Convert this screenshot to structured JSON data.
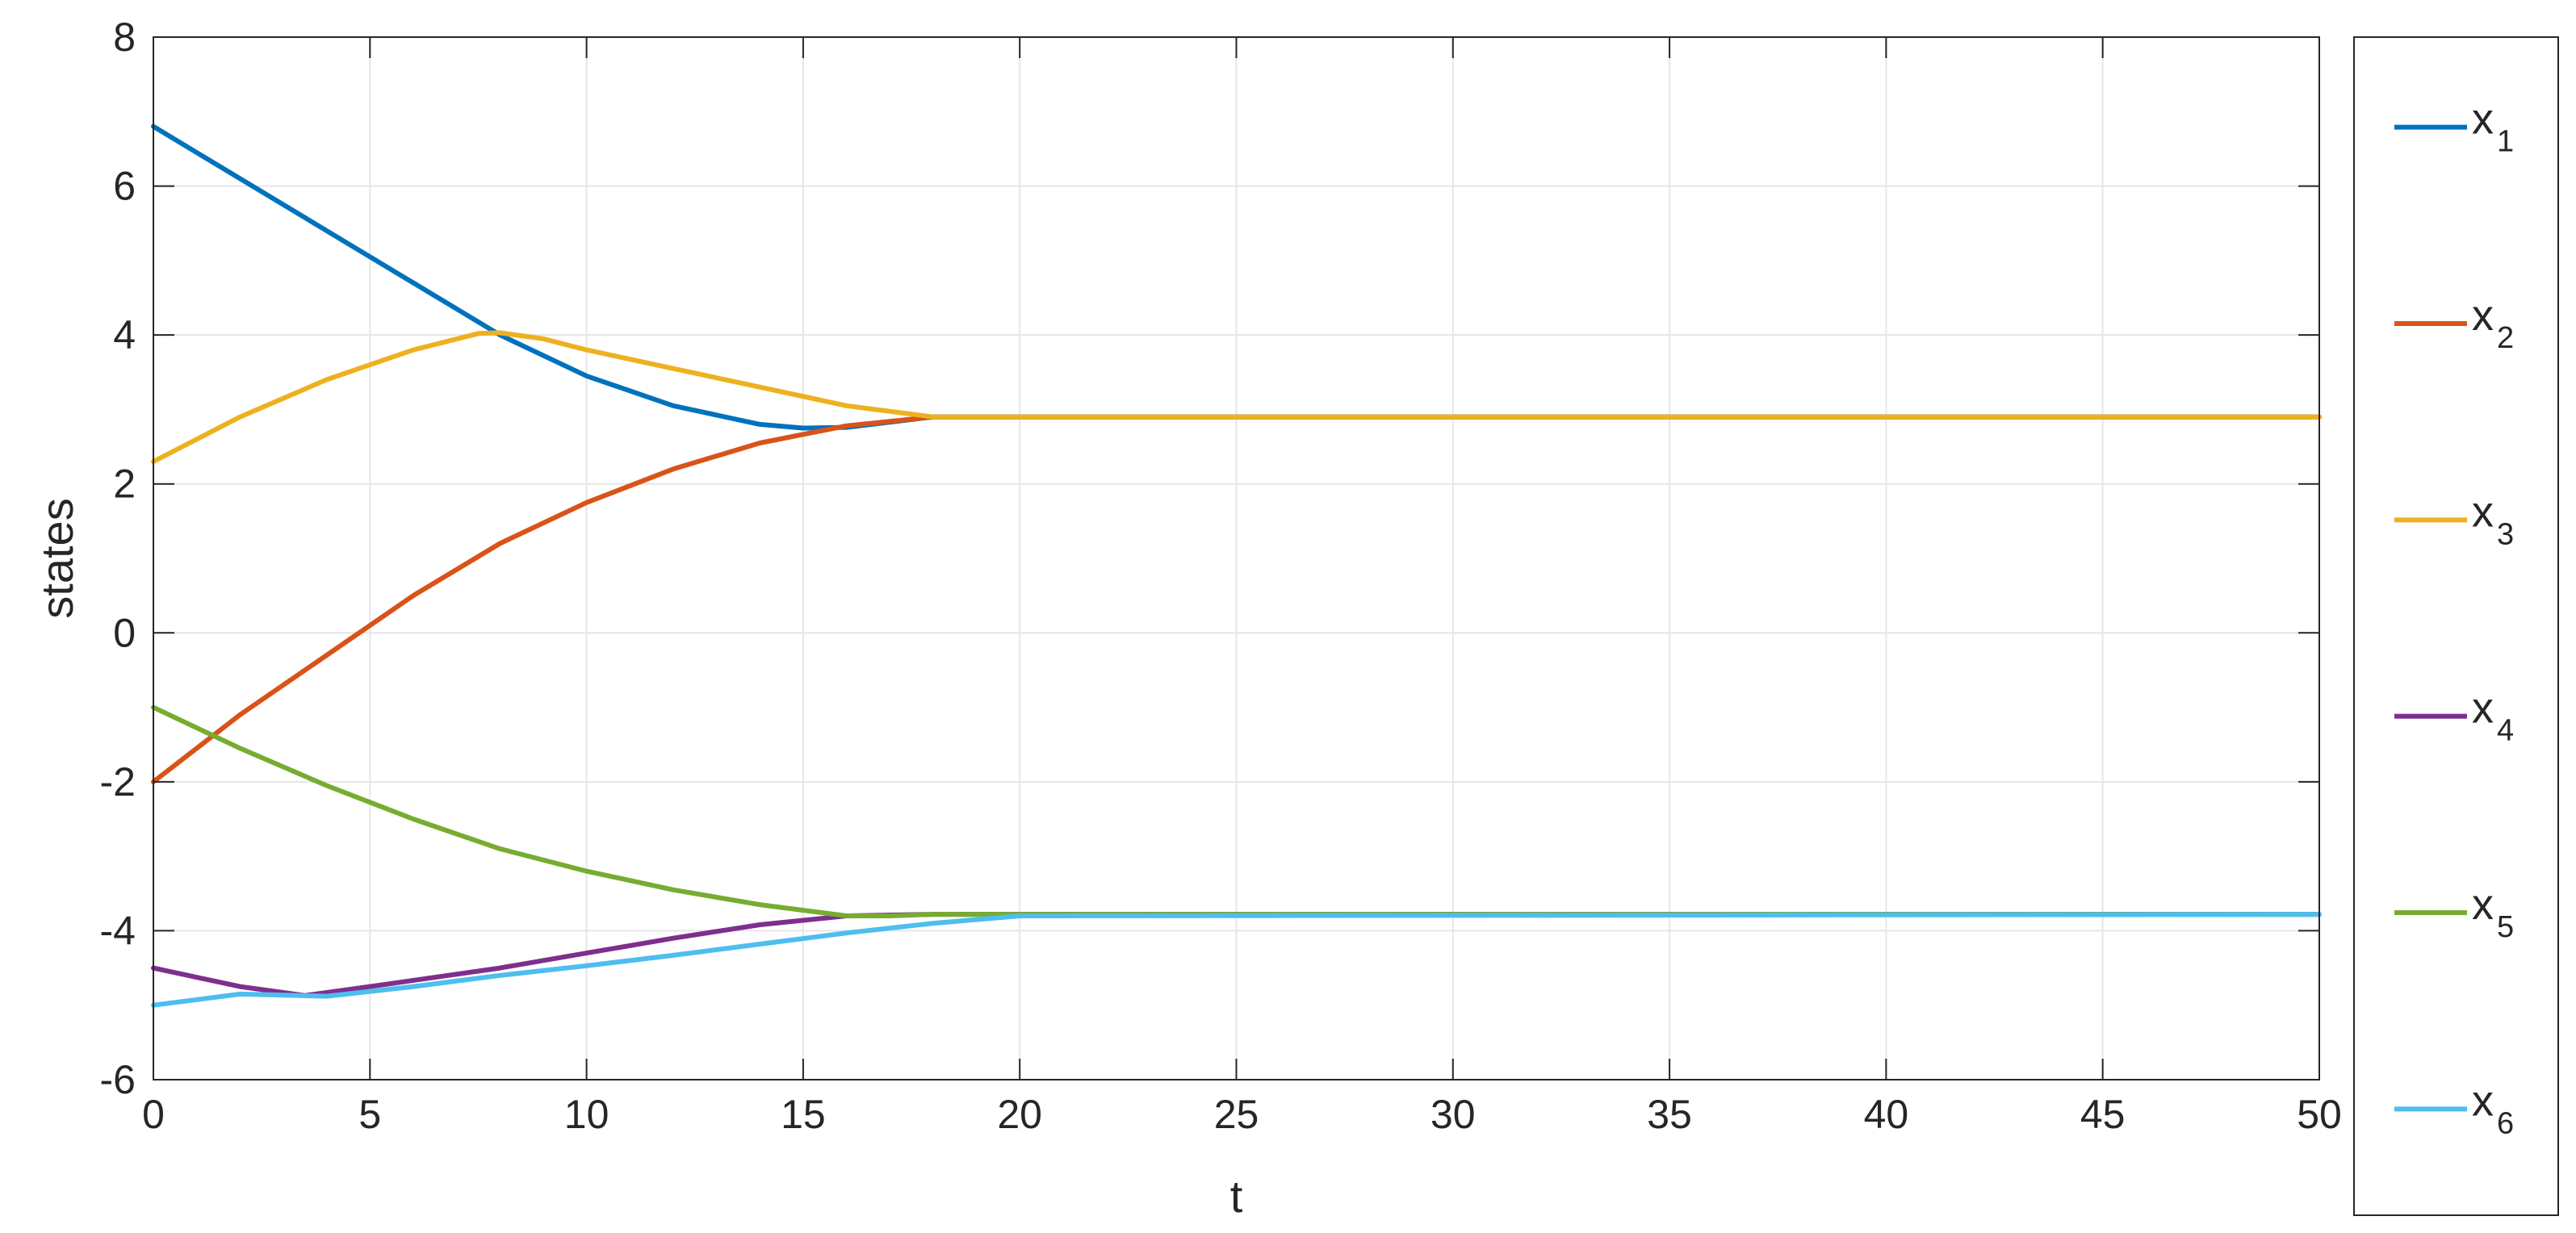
{
  "chart_data": {
    "type": "line",
    "xlabel": "t",
    "ylabel": "states",
    "xlim": [
      0,
      50
    ],
    "ylim": [
      -6,
      8
    ],
    "xticks": [
      0,
      5,
      10,
      15,
      20,
      25,
      30,
      35,
      40,
      45,
      50
    ],
    "yticks": [
      -6,
      -4,
      -2,
      0,
      2,
      4,
      6,
      8
    ],
    "grid": true,
    "legend_position": "right-outside",
    "series": [
      {
        "name": "x",
        "subscript": "1",
        "color": "#0072BD",
        "points": [
          [
            0,
            6.8
          ],
          [
            2,
            6.1
          ],
          [
            4,
            5.4
          ],
          [
            6,
            4.7
          ],
          [
            8,
            4.0
          ],
          [
            10,
            3.45
          ],
          [
            12,
            3.05
          ],
          [
            14,
            2.8
          ],
          [
            15,
            2.75
          ],
          [
            16,
            2.76
          ],
          [
            18,
            2.9
          ],
          [
            20,
            2.9
          ],
          [
            50,
            2.9
          ]
        ]
      },
      {
        "name": "x",
        "subscript": "2",
        "color": "#D95319",
        "points": [
          [
            0,
            -2.0
          ],
          [
            2,
            -1.1
          ],
          [
            4,
            -0.3
          ],
          [
            6,
            0.5
          ],
          [
            8,
            1.2
          ],
          [
            10,
            1.75
          ],
          [
            12,
            2.2
          ],
          [
            14,
            2.55
          ],
          [
            16,
            2.78
          ],
          [
            18,
            2.9
          ],
          [
            20,
            2.9
          ],
          [
            50,
            2.9
          ]
        ]
      },
      {
        "name": "x",
        "subscript": "3",
        "color": "#EDB120",
        "points": [
          [
            0,
            2.3
          ],
          [
            2,
            2.9
          ],
          [
            4,
            3.4
          ],
          [
            6,
            3.8
          ],
          [
            7.5,
            4.02
          ],
          [
            8,
            4.03
          ],
          [
            9,
            3.95
          ],
          [
            10,
            3.8
          ],
          [
            12,
            3.55
          ],
          [
            14,
            3.3
          ],
          [
            16,
            3.05
          ],
          [
            18,
            2.9
          ],
          [
            20,
            2.9
          ],
          [
            50,
            2.9
          ]
        ]
      },
      {
        "name": "x",
        "subscript": "4",
        "color": "#7E2F8E",
        "points": [
          [
            0,
            -4.5
          ],
          [
            2,
            -4.75
          ],
          [
            3.5,
            -4.87
          ],
          [
            5,
            -4.75
          ],
          [
            8,
            -4.5
          ],
          [
            10,
            -4.3
          ],
          [
            12,
            -4.1
          ],
          [
            14,
            -3.92
          ],
          [
            16,
            -3.8
          ],
          [
            18,
            -3.78
          ],
          [
            20,
            -3.78
          ],
          [
            50,
            -3.78
          ]
        ]
      },
      {
        "name": "x",
        "subscript": "5",
        "color": "#77AC30",
        "points": [
          [
            0,
            -1.0
          ],
          [
            2,
            -1.55
          ],
          [
            4,
            -2.05
          ],
          [
            6,
            -2.5
          ],
          [
            8,
            -2.9
          ],
          [
            10,
            -3.2
          ],
          [
            12,
            -3.45
          ],
          [
            14,
            -3.65
          ],
          [
            16,
            -3.8
          ],
          [
            17,
            -3.8
          ],
          [
            18,
            -3.78
          ],
          [
            20,
            -3.78
          ],
          [
            50,
            -3.78
          ]
        ]
      },
      {
        "name": "x",
        "subscript": "6",
        "color": "#4DBEEE",
        "points": [
          [
            0,
            -5.0
          ],
          [
            2,
            -4.85
          ],
          [
            4,
            -4.88
          ],
          [
            6,
            -4.75
          ],
          [
            8,
            -4.6
          ],
          [
            10,
            -4.47
          ],
          [
            12,
            -4.33
          ],
          [
            14,
            -4.18
          ],
          [
            16,
            -4.03
          ],
          [
            18,
            -3.9
          ],
          [
            20,
            -3.8
          ],
          [
            50,
            -3.78
          ]
        ]
      }
    ]
  }
}
